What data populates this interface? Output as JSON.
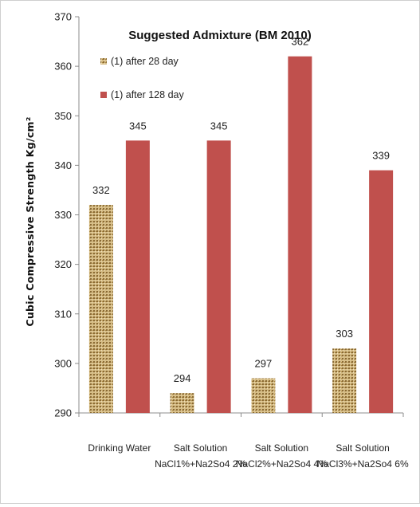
{
  "chart_data": {
    "type": "bar",
    "title": "Suggested Admixture (BM 2010)",
    "ylabel": "Cubic Compressive Strength Kg/cm²",
    "xlabel": "",
    "ylim": [
      290,
      370
    ],
    "yticks": [
      290,
      300,
      310,
      320,
      330,
      340,
      350,
      360,
      370
    ],
    "legend_position": "top-left",
    "grid": false,
    "categories": [
      [
        "Drinking Water"
      ],
      [
        "Salt Solution",
        "NaCl1%+Na2So4 2%"
      ],
      [
        "Salt Solution",
        "NaCl2%+Na2So4 4%"
      ],
      [
        "Salt Solution",
        "NaCl3%+Na2So4 6%"
      ]
    ],
    "series": [
      {
        "name": "(1) after 28 day",
        "values": [
          332,
          294,
          297,
          303
        ],
        "data_labels": [
          "332",
          "294",
          "297",
          "303"
        ],
        "color": "#c7a86a",
        "pattern": "textured"
      },
      {
        "name": "(1) after 128 day",
        "values": [
          345,
          345,
          362,
          339
        ],
        "data_labels": [
          "345",
          "345",
          "362",
          "339"
        ],
        "color": "#c0504d"
      }
    ]
  }
}
